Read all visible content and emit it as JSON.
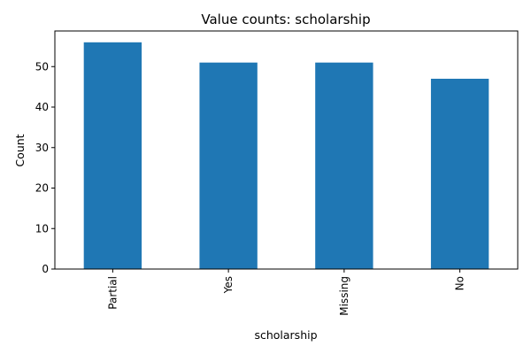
{
  "chart_data": {
    "type": "bar",
    "title": "Value counts: scholarship",
    "xlabel": "scholarship",
    "ylabel": "Count",
    "categories": [
      "Partial",
      "Yes",
      "Missing",
      "No"
    ],
    "values": [
      56,
      51,
      51,
      47
    ],
    "ylim": [
      0,
      58.8
    ],
    "yticks": [
      0,
      10,
      20,
      30,
      40,
      50
    ],
    "grid": false,
    "legend": "none",
    "bar_color": "#1f77b4"
  }
}
